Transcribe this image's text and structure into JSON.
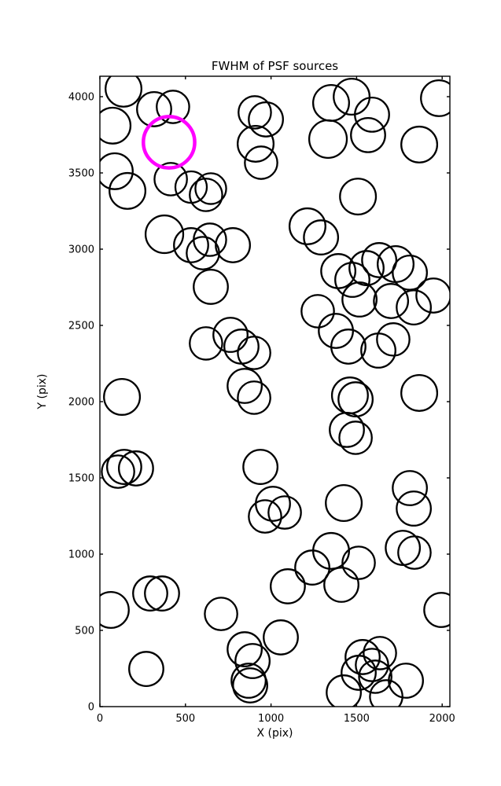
{
  "figure": {
    "title": "FWHM of PSF sources"
  },
  "chart_data": {
    "type": "scatter",
    "title": "FWHM of PSF sources",
    "xlabel": "X (pix)",
    "ylabel": "Y (pix)",
    "xlim": [
      0,
      2045
    ],
    "ylim": [
      0,
      4134
    ],
    "xticks": [
      0,
      500,
      1000,
      1500,
      2000
    ],
    "yticks": [
      0,
      500,
      1000,
      1500,
      2000,
      2500,
      3000,
      3500,
      4000
    ],
    "grid": false,
    "legend": "none",
    "marker": "open-circle",
    "circle_color": "#000000",
    "highlight_color": "#ff00ff",
    "highlight_circle": {
      "x": 404,
      "y": 3701,
      "r": 150
    },
    "circles": [
      [
        138,
        4052,
        105
      ],
      [
        74,
        3810,
        105
      ],
      [
        317,
        3918,
        100
      ],
      [
        427,
        3933,
        95
      ],
      [
        905,
        3897,
        95
      ],
      [
        970,
        3851,
        100
      ],
      [
        910,
        3691,
        105
      ],
      [
        942,
        3567,
        95
      ],
      [
        1351,
        3959,
        105
      ],
      [
        1471,
        4000,
        105
      ],
      [
        1590,
        3882,
        100
      ],
      [
        1333,
        3722,
        110
      ],
      [
        1567,
        3748,
        100
      ],
      [
        1866,
        3686,
        105
      ],
      [
        1981,
        3990,
        105
      ],
      [
        87,
        3511,
        105
      ],
      [
        161,
        3382,
        105
      ],
      [
        414,
        3459,
        95
      ],
      [
        533,
        3407,
        92
      ],
      [
        620,
        3356,
        95
      ],
      [
        648,
        3397,
        90
      ],
      [
        1508,
        3345,
        105
      ],
      [
        377,
        3098,
        110
      ],
      [
        533,
        3026,
        100
      ],
      [
        602,
        2974,
        95
      ],
      [
        777,
        3026,
        100
      ],
      [
        643,
        3062,
        95
      ],
      [
        1213,
        3150,
        105
      ],
      [
        1292,
        3077,
        100
      ],
      [
        648,
        2753,
        100
      ],
      [
        1393,
        2856,
        100
      ],
      [
        1475,
        2799,
        100
      ],
      [
        1558,
        2876,
        100
      ],
      [
        1632,
        2928,
        100
      ],
      [
        1728,
        2902,
        105
      ],
      [
        1811,
        2846,
        100
      ],
      [
        1517,
        2670,
        100
      ],
      [
        1701,
        2660,
        100
      ],
      [
        1834,
        2618,
        100
      ],
      [
        1949,
        2696,
        100
      ],
      [
        1273,
        2593,
        95
      ],
      [
        1379,
        2464,
        100
      ],
      [
        620,
        2382,
        95
      ],
      [
        763,
        2438,
        100
      ],
      [
        827,
        2361,
        100
      ],
      [
        901,
        2320,
        95
      ],
      [
        1452,
        2361,
        100
      ],
      [
        1627,
        2335,
        100
      ],
      [
        1714,
        2408,
        95
      ],
      [
        129,
        2031,
        105
      ],
      [
        846,
        2103,
        100
      ],
      [
        901,
        2026,
        95
      ],
      [
        1461,
        2041,
        105
      ],
      [
        1494,
        2015,
        100
      ],
      [
        1866,
        2057,
        105
      ],
      [
        1443,
        1815,
        100
      ],
      [
        1494,
        1763,
        95
      ],
      [
        142,
        1572,
        100
      ],
      [
        211,
        1562,
        100
      ],
      [
        106,
        1541,
        95
      ],
      [
        938,
        1572,
        100
      ],
      [
        1011,
        1330,
        100
      ],
      [
        1080,
        1273,
        95
      ],
      [
        965,
        1247,
        95
      ],
      [
        1425,
        1335,
        105
      ],
      [
        1811,
        1433,
        100
      ],
      [
        1834,
        1299,
        100
      ],
      [
        1351,
        1021,
        105
      ],
      [
        1512,
        943,
        95
      ],
      [
        1241,
        912,
        100
      ],
      [
        1770,
        1041,
        100
      ],
      [
        1838,
        1010,
        95
      ],
      [
        1098,
        789,
        100
      ],
      [
        1411,
        799,
        100
      ],
      [
        294,
        742,
        100
      ],
      [
        363,
        742,
        100
      ],
      [
        64,
        634,
        105
      ],
      [
        1995,
        634,
        100
      ],
      [
        708,
        608,
        95
      ],
      [
        1057,
        454,
        100
      ],
      [
        846,
        376,
        100
      ],
      [
        892,
        299,
        100
      ],
      [
        271,
        247,
        100
      ],
      [
        1535,
        325,
        100
      ],
      [
        1590,
        273,
        95
      ],
      [
        1636,
        351,
        95
      ],
      [
        1512,
        222,
        100
      ],
      [
        1609,
        196,
        95
      ],
      [
        1788,
        170,
        100
      ],
      [
        869,
        170,
        100
      ],
      [
        878,
        139,
        100
      ],
      [
        1425,
        93,
        100
      ],
      [
        1673,
        67,
        95
      ]
    ]
  }
}
